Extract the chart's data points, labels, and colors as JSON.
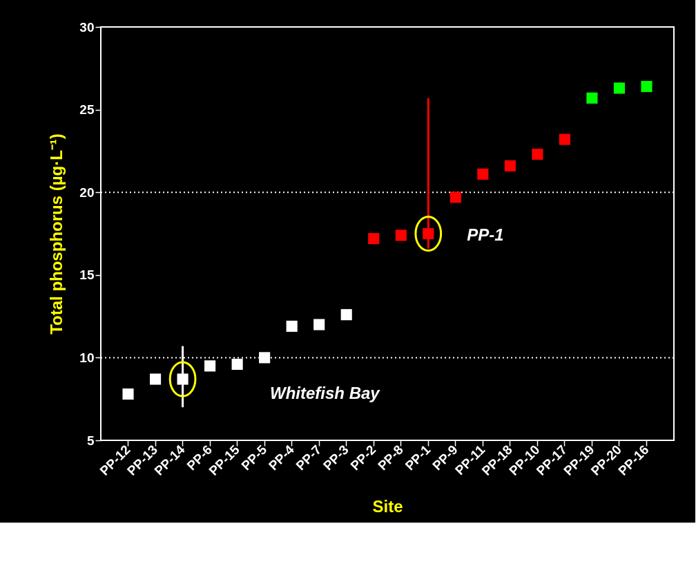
{
  "chart_data": {
    "type": "scatter",
    "xlabel": "Site",
    "ylabel": "Total phosphorus (µg·L⁻¹)",
    "categories": [
      "PP-12",
      "PP-13",
      "PP-14",
      "PP-6",
      "PP-15",
      "PP-5",
      "PP-4",
      "PP-7",
      "PP-3",
      "PP-2",
      "PP-8",
      "PP-1",
      "PP-9",
      "PP-11",
      "PP-18",
      "PP-10",
      "PP-17",
      "PP-19",
      "PP-20",
      "PP-16"
    ],
    "series": [
      {
        "color": "#ffffff",
        "values": [
          7.8,
          8.7,
          8.7,
          9.5,
          9.6,
          10.0,
          11.9,
          12.0,
          12.6,
          null,
          null,
          null,
          null,
          null,
          null,
          null,
          null,
          null,
          null,
          null
        ],
        "errors": [
          null,
          null,
          [
            7.0,
            10.7
          ],
          null,
          null,
          null,
          null,
          null,
          null,
          null,
          null,
          null,
          null,
          null,
          null,
          null,
          null,
          null,
          null,
          null
        ]
      },
      {
        "color": "#ff0000",
        "values": [
          null,
          null,
          null,
          null,
          null,
          null,
          null,
          null,
          null,
          17.2,
          17.4,
          17.5,
          19.7,
          21.1,
          21.6,
          22.3,
          23.2,
          null,
          null,
          null
        ],
        "errors": [
          null,
          null,
          null,
          null,
          null,
          null,
          null,
          null,
          null,
          null,
          null,
          [
            16.6,
            25.7
          ],
          null,
          null,
          null,
          null,
          null,
          null,
          null,
          null
        ]
      },
      {
        "color": "#00ff00",
        "values": [
          null,
          null,
          null,
          null,
          null,
          null,
          null,
          null,
          null,
          null,
          null,
          null,
          null,
          null,
          null,
          null,
          null,
          25.7,
          26.3,
          26.4
        ]
      }
    ],
    "ylim": [
      5,
      30
    ],
    "yticks": [
      5,
      10,
      15,
      20,
      25,
      30
    ],
    "ref_lines": [
      {
        "axis": "y",
        "value": 10,
        "color": "#ffffff",
        "line_style": "dotted"
      },
      {
        "axis": "y",
        "value": 20,
        "color": "#ffffff",
        "line_style": "dotted"
      }
    ],
    "annotations": [
      "Whitefish Bay",
      {
        "text": "PP-1",
        "x": "PP-1",
        "y": 17.5
      }
    ],
    "marker": "square",
    "grid": false,
    "legend": false
  }
}
